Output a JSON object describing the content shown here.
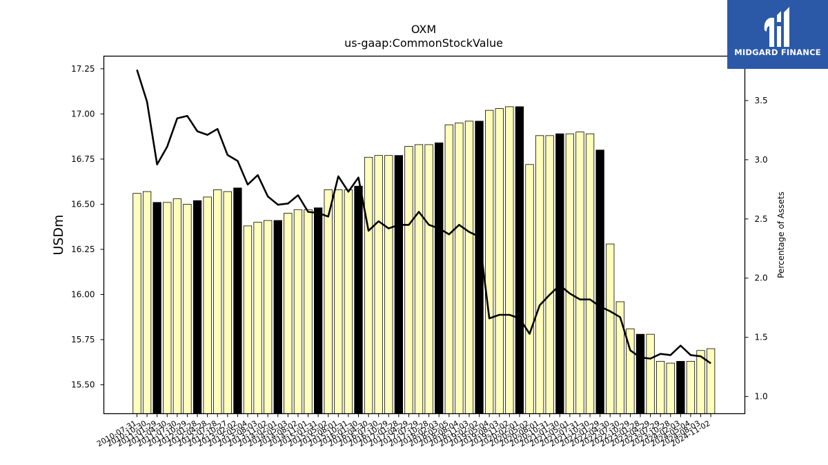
{
  "branding": {
    "name": "MIDGARD FINANCE",
    "bg_color": "#2b59a8"
  },
  "chart_data": {
    "type": "bar",
    "title": "OXM",
    "subtitle": "us-gaap:CommonStockValue",
    "ylabel": "USDm",
    "ylabel_right": "Percentage of Assets",
    "ylim": [
      15.34,
      17.32
    ],
    "yticks": [
      "15.50",
      "15.75",
      "16.00",
      "16.25",
      "16.50",
      "16.75",
      "17.00",
      "17.25"
    ],
    "ylim_right": [
      0.855,
      3.875
    ],
    "yticks_right": [
      "1.0",
      "1.5",
      "2.0",
      "2.5",
      "3.0",
      "3.5"
    ],
    "grid": false,
    "categories": [
      "2010-07-31",
      "2010-10-30",
      "2011-01-29",
      "2011-04-30",
      "2011-07-30",
      "2011-10-29",
      "2012-01-28",
      "2012-04-28",
      "2012-07-28",
      "2012-10-27",
      "2013-02-02",
      "2013-05-04",
      "2013-08-03",
      "2013-11-02",
      "2014-02-01",
      "2014-05-03",
      "2014-08-02",
      "2014-11-01",
      "2015-01-31",
      "2015-05-02",
      "2015-08-01",
      "2015-10-31",
      "2016-01-30",
      "2016-04-30",
      "2016-07-30",
      "2016-10-29",
      "2017-01-28",
      "2017-04-29",
      "2017-07-29",
      "2017-10-28",
      "2018-02-03",
      "2018-05-05",
      "2018-08-04",
      "2018-11-03",
      "2019-02-02",
      "2019-05-04",
      "2019-08-03",
      "2019-11-02",
      "2020-02-01",
      "2020-05-02",
      "2020-08-01",
      "2020-10-31",
      "2021-01-30",
      "2021-05-01",
      "2021-07-31",
      "2021-10-30",
      "2022-01-29",
      "2022-04-30",
      "2022-07-30",
      "2022-10-29",
      "2023-01-28",
      "2023-04-29",
      "2023-07-29",
      "2023-10-28",
      "2024-02-03",
      "2024-05-04",
      "2024-08-03",
      "2024-11-02"
    ],
    "highlight_indices": [
      2,
      6,
      10,
      14,
      18,
      22,
      26,
      30,
      34,
      38,
      42,
      46,
      50,
      54
    ],
    "bar_color": "#ffffbb",
    "highlight_color": "#000000",
    "series": [
      {
        "type": "bar",
        "axis": "left",
        "values": [
          16.56,
          16.57,
          16.51,
          16.51,
          16.53,
          16.5,
          16.52,
          16.54,
          16.58,
          16.57,
          16.59,
          16.38,
          16.4,
          16.41,
          16.41,
          16.45,
          16.47,
          16.47,
          16.48,
          16.58,
          16.58,
          16.58,
          16.6,
          16.76,
          16.77,
          16.77,
          16.77,
          16.82,
          16.83,
          16.83,
          16.84,
          16.94,
          16.95,
          16.96,
          16.96,
          17.02,
          17.03,
          17.04,
          17.04,
          16.72,
          16.88,
          16.88,
          16.89,
          16.89,
          16.9,
          16.89,
          16.8,
          16.28,
          15.96,
          15.81,
          15.78,
          15.78,
          15.63,
          15.62,
          15.63,
          15.63,
          15.69,
          15.7
        ]
      },
      {
        "type": "line",
        "axis": "right",
        "values": [
          3.76,
          3.49,
          2.96,
          3.11,
          3.35,
          3.37,
          3.24,
          3.21,
          3.26,
          3.04,
          2.99,
          2.79,
          2.87,
          2.69,
          2.62,
          2.63,
          2.7,
          2.56,
          2.55,
          2.52,
          2.86,
          2.73,
          2.85,
          2.4,
          2.48,
          2.42,
          2.45,
          2.45,
          2.56,
          2.45,
          2.42,
          2.37,
          2.45,
          2.39,
          2.35,
          1.66,
          1.69,
          1.69,
          1.66,
          1.53,
          1.77,
          1.86,
          1.94,
          1.87,
          1.82,
          1.82,
          1.76,
          1.72,
          1.67,
          1.39,
          1.33,
          1.32,
          1.36,
          1.35,
          1.43,
          1.35,
          1.34,
          1.28
        ]
      }
    ]
  }
}
